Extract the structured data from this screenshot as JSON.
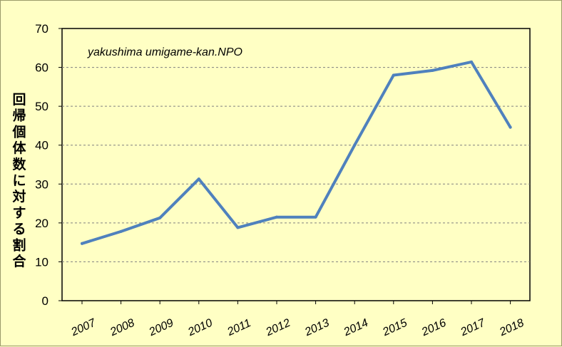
{
  "chart_data": {
    "type": "line",
    "title": "",
    "annotation": "yakushima umigame-kan.NPO",
    "xlabel": "",
    "ylabel": "回帰個体数に対する割合",
    "categories": [
      "2007",
      "2008",
      "2009",
      "2010",
      "2011",
      "2012",
      "2013",
      "2014",
      "2015",
      "2016",
      "2017",
      "2018"
    ],
    "series": [
      {
        "values": [
          14.7,
          17.8,
          21.3,
          31.3,
          18.8,
          21.5,
          21.5,
          40.0,
          58.0,
          59.2,
          61.4,
          44.6
        ]
      }
    ],
    "ylim": [
      0,
      70
    ],
    "yticks": [
      0,
      10,
      20,
      30,
      40,
      50,
      60,
      70
    ],
    "grid": "horizontal dashed",
    "legend": "none",
    "colors": {
      "line": "#4f81bd",
      "background": "#ffffc4",
      "grid": "#808080"
    }
  }
}
